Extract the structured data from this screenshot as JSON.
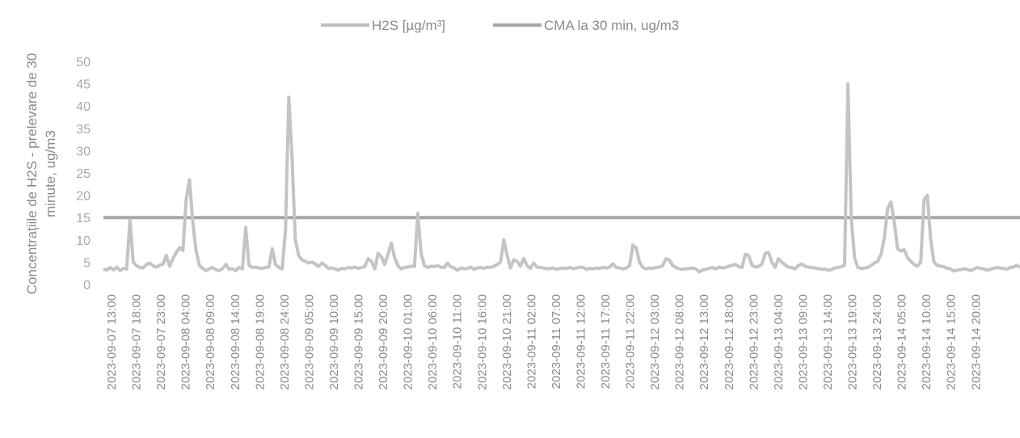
{
  "chart_data": {
    "type": "line",
    "title": "",
    "ylabel_lines": [
      "Concentrațiile de H2S - prelevare de 30",
      "minute, ug/m3"
    ],
    "ylim": [
      0,
      50
    ],
    "yticks": [
      0,
      5,
      10,
      15,
      20,
      25,
      30,
      35,
      40,
      45,
      50
    ],
    "xlabel": "",
    "x_tick_labels": [
      "2023-09-07 13:00",
      "2023-09-07 18:00",
      "2023-09-07 23:00",
      "2023-09-08 04:00",
      "2023-09-08 09:00",
      "2023-09-08 14:00",
      "2023-09-08 19:00",
      "2023-09-08 24:00",
      "2023-09-09 05:00",
      "2023-09-09 10:00",
      "2023-09-09 15:00",
      "2023-09-09 20:00",
      "2023-09-10 01:00",
      "2023-09-10 06:00",
      "2023-09-10 11:00",
      "2023-09-10 16:00",
      "2023-09-10 21:00",
      "2023-09-11 02:00",
      "2023-09-11 07:00",
      "2023-09-11 12:00",
      "2023-09-11 17:00",
      "2023-09-11 22:00",
      "2023-09-12 03:00",
      "2023-09-12 08:00",
      "2023-09-12 13:00",
      "2023-09-12 18:00",
      "2023-09-12 23:00",
      "2023-09-13 04:00",
      "2023-09-13 09:00",
      "2023-09-13 14:00",
      "2023-09-13 19:00",
      "2023-09-13 24:00",
      "2023-09-14 05:00",
      "2023-09-14 10:00",
      "2023-09-14 15:00",
      "2023-09-14 20:00"
    ],
    "legend_position": "top-center",
    "grid": false,
    "series": [
      {
        "name": "H2S [µg/m³]",
        "color": "#c4c4c4",
        "values": [
          3.5,
          3.2,
          3.8,
          3.3,
          3.9,
          3.1,
          3.6,
          3.4,
          14.5,
          5,
          4.2,
          3.8,
          3.7,
          4.5,
          4.8,
          4.2,
          3.9,
          4.3,
          4.6,
          6.5,
          4.1,
          5.8,
          7.2,
          8.3,
          7.6,
          19,
          23.5,
          14,
          7.5,
          4.3,
          3.6,
          3.1,
          3.5,
          3.8,
          3.3,
          3.1,
          3.6,
          4.5,
          3.4,
          3.5,
          3.1,
          3.8,
          3.5,
          12.8,
          4.3,
          3.8,
          3.9,
          3.7,
          3.6,
          3.8,
          3.9,
          8,
          4.5,
          3.8,
          3.5,
          12,
          42,
          28,
          10,
          6.5,
          5.5,
          5.2,
          4.8,
          5,
          4.6,
          4,
          4.8,
          4.3,
          3.6,
          3.7,
          3.5,
          3.2,
          3.6,
          3.5,
          3.8,
          3.7,
          3.9,
          3.6,
          3.8,
          4,
          5.8,
          5.2,
          3.5,
          7,
          6.2,
          4.5,
          6.8,
          9.3,
          6,
          4.2,
          3.5,
          3.8,
          3.9,
          4.1,
          4,
          16,
          7,
          4.2,
          3.8,
          4.1,
          4,
          4.2,
          3.9,
          3.8,
          4.8,
          3.9,
          3.7,
          3.2,
          3.7,
          3.5,
          3.6,
          3.9,
          3.4,
          3.7,
          3.8,
          3.6,
          3.9,
          3.8,
          4.1,
          4.5,
          5,
          10,
          6.5,
          3.7,
          5.5,
          5.2,
          4.1,
          5.8,
          4.2,
          3.6,
          4.8,
          3.9,
          3.8,
          3.7,
          3.5,
          3.6,
          3.7,
          3.4,
          3.6,
          3.7,
          3.6,
          3.8,
          3.5,
          3.7,
          3.9,
          3.8,
          3.4,
          3.6,
          3.5,
          3.7,
          3.6,
          3.8,
          3.7,
          3.9,
          4.6,
          3.8,
          3.7,
          3.5,
          3.7,
          4.2,
          8.8,
          8.2,
          5,
          3.8,
          3.5,
          3.7,
          3.6,
          3.8,
          3.9,
          4.2,
          5.8,
          5.5,
          4.3,
          3.8,
          3.5,
          3.4,
          3.5,
          3.6,
          3.7,
          3.5,
          2.8,
          3.2,
          3.4,
          3.6,
          3.8,
          3.5,
          3.9,
          3.7,
          3.8,
          4.1,
          4.3,
          4.5,
          4,
          3.8,
          6.8,
          6.5,
          4.3,
          3.9,
          4,
          4.6,
          7,
          7.2,
          5,
          3.8,
          5.8,
          5,
          4.4,
          3.9,
          3.8,
          3.5,
          4.2,
          4.6,
          4.1,
          3.9,
          3.8,
          3.7,
          3.6,
          3.4,
          3.5,
          3.2,
          3.3,
          3.7,
          3.8,
          4,
          4.3,
          45,
          15,
          6,
          3.8,
          3.6,
          3.7,
          3.8,
          4.3,
          4.8,
          5.2,
          6.8,
          10.5,
          17,
          18.5,
          14,
          8,
          7.5,
          7.8,
          6,
          5.2,
          4.5,
          4.1,
          5,
          19,
          20,
          10,
          5,
          4.3,
          4.1,
          4,
          3.6,
          3.5,
          3,
          3.2,
          3.3,
          3.5,
          3.4,
          3.1,
          3.4,
          3.8,
          3.6,
          3.5,
          3.2,
          3.4,
          3.6,
          3.8,
          3.7,
          3.6,
          3.4,
          3.8,
          3.9,
          4.3,
          3.8
        ]
      },
      {
        "name": "CMA la 30 min, ug/m3",
        "color": "#a6a6a6",
        "values_constant": 15
      }
    ]
  }
}
